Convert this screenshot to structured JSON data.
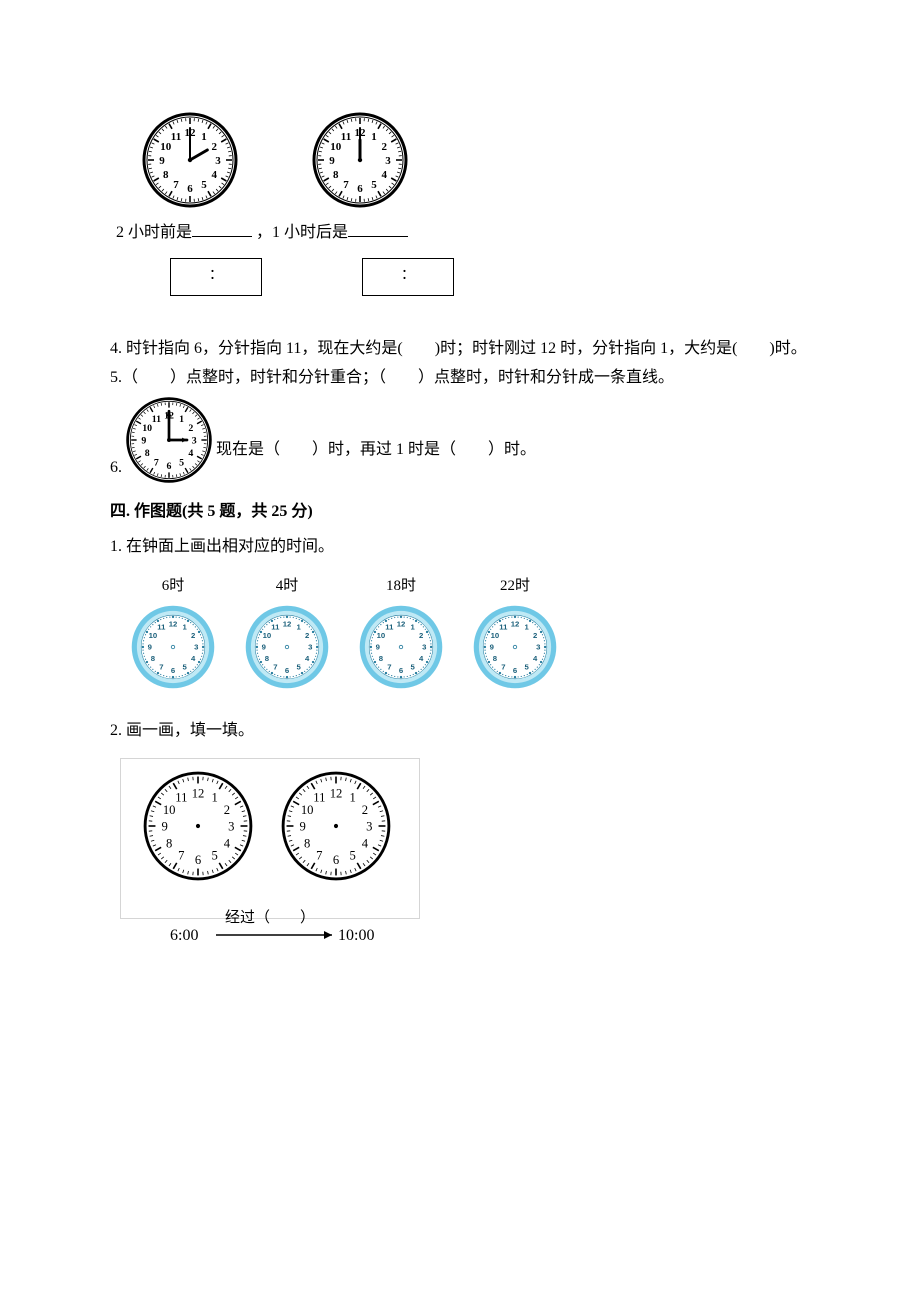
{
  "topClocks": {
    "clock1": {
      "hour": 2,
      "minute": 0,
      "diameter": 100
    },
    "clock2": {
      "hour": 12,
      "minute": 0,
      "diameter": 100
    },
    "label1_prefix": "2 小时前是",
    "label2_prefix": "，1 小时后是",
    "box_colon": "："
  },
  "q4": {
    "text": "4. 时针指向 6，分针指向 11，现在大约是(　　)时；时针刚过 12 时，分针指向 1，大约是(　　)时。"
  },
  "q5": {
    "text": "5.（　　）点整时，时针和分针重合；（　　）点整时，时针和分针成一条直线。"
  },
  "q6": {
    "clock": {
      "hour": 3,
      "minute": 0,
      "diameter": 90
    },
    "prefix": "6.",
    "text": " 现在是（　　）时，再过 1 时是（　　）时。"
  },
  "section4": {
    "title": "四. 作图题(共 5 题，共 25 分)"
  },
  "s4q1": {
    "prompt": "1. 在钟面上画出相对应的时间。",
    "clocks": [
      {
        "label": "6时"
      },
      {
        "label": "4时"
      },
      {
        "label": "18时"
      },
      {
        "label": "22时"
      }
    ],
    "diameter": 86,
    "ring_outer": "#6fc8e6",
    "ring_inner": "#bfe9f5"
  },
  "s4q2": {
    "prompt": "2. 画一画，填一填。",
    "clock_diameter": 110,
    "left_time": "6:00",
    "right_time": "10:00",
    "middle_label": "经过（　　）"
  }
}
